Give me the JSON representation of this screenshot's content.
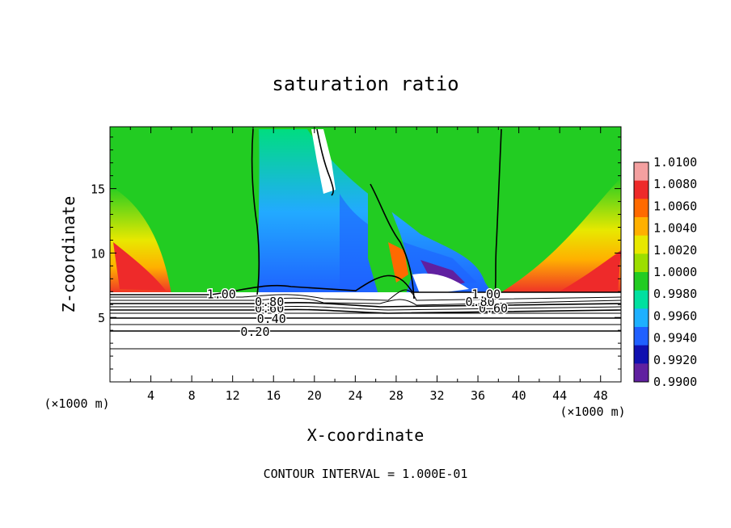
{
  "chart_data": {
    "type": "heatmap",
    "title": "saturation ratio",
    "xlabel": "X-coordinate",
    "ylabel": "Z-coordinate",
    "x_unit_label": "(×1000 m)",
    "x_unit_label_right": "(×1000 m)",
    "xlim": [
      0,
      50
    ],
    "ylim": [
      0,
      19.8
    ],
    "x_ticks": [
      4,
      8,
      12,
      16,
      20,
      24,
      28,
      32,
      36,
      40,
      44,
      48
    ],
    "y_ticks": [
      5,
      10,
      15
    ],
    "x_tick_labels": [
      "4",
      "8",
      "12",
      "16",
      "20",
      "24",
      "28",
      "32",
      "36",
      "40",
      "44",
      "48"
    ],
    "y_tick_labels": [
      "5",
      "10",
      "15"
    ],
    "footer": "CONTOUR INTERVAL = 1.000E-01",
    "colorbar": {
      "levels": [
        "1.0100",
        "1.0080",
        "1.0060",
        "1.0040",
        "1.0020",
        "1.0000",
        "0.9980",
        "0.9960",
        "0.9940",
        "0.9920",
        "0.9900"
      ],
      "colors": [
        "#f4a0a0",
        "#ee2a2a",
        "#ff6a00",
        "#ffb000",
        "#e8e800",
        "#9cde00",
        "#22cc22",
        "#00e0a0",
        "#1eb0ff",
        "#2060ff",
        "#1010b0",
        "#6020a0"
      ]
    },
    "contours": [
      {
        "level": 0.2,
        "label": "0.20",
        "z": 3.9,
        "labels_at_x": [
          14.2
        ]
      },
      {
        "level": 0.4,
        "label": "0.40",
        "z": 4.9,
        "labels_at_x": [
          15.8
        ]
      },
      {
        "level": 0.6,
        "label": "0.60",
        "z": 5.7,
        "labels_at_x": [
          15.6,
          37.5
        ]
      },
      {
        "level": 0.8,
        "label": "0.80",
        "z": 6.2,
        "labels_at_x": [
          15.6,
          36.2
        ]
      },
      {
        "level": 1.0,
        "label": "1.00",
        "z": 6.8,
        "labels_at_x": [
          10.9,
          36.8
        ]
      }
    ]
  }
}
